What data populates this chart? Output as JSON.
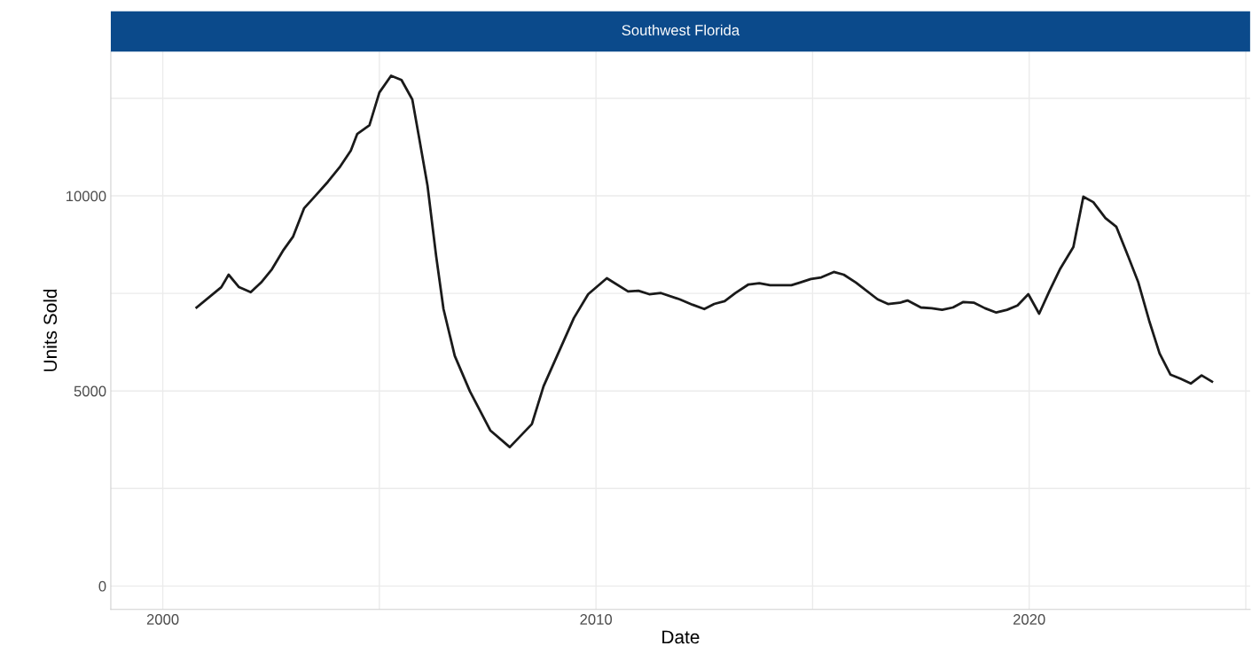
{
  "chart_data": {
    "type": "line",
    "title": "Southwest Florida",
    "xlabel": "Date",
    "ylabel": "Units Sold",
    "x": [
      2000.78,
      2001.35,
      2001.52,
      2001.76,
      2002.03,
      2002.27,
      2002.52,
      2002.79,
      2003.01,
      2003.26,
      2003.52,
      2003.81,
      2004.08,
      2004.34,
      2004.49,
      2004.77,
      2005.0,
      2005.27,
      2005.51,
      2005.76,
      2005.92,
      2006.11,
      2006.31,
      2006.48,
      2006.74,
      2007.09,
      2007.56,
      2008.01,
      2008.52,
      2008.79,
      2009.49,
      2009.82,
      2010.25,
      2010.74,
      2010.98,
      2011.23,
      2011.5,
      2011.93,
      2012.23,
      2012.5,
      2012.73,
      2012.97,
      2013.22,
      2013.52,
      2013.77,
      2014.02,
      2014.51,
      2014.71,
      2014.96,
      2015.2,
      2015.49,
      2015.72,
      2016.0,
      2016.5,
      2016.74,
      2017.01,
      2017.19,
      2017.5,
      2017.75,
      2017.99,
      2018.24,
      2018.48,
      2018.73,
      2018.98,
      2019.24,
      2019.49,
      2019.73,
      2019.98,
      2020.23,
      2020.47,
      2020.72,
      2021.02,
      2021.25,
      2021.48,
      2021.76,
      2022.01,
      2022.25,
      2022.52,
      2022.77,
      2023.01,
      2023.26,
      2023.5,
      2023.73,
      2023.98,
      2024.22
    ],
    "series": [
      {
        "color": "#1a1a1a",
        "values": [
          7140,
          7660,
          7980,
          7660,
          7530,
          7780,
          8120,
          8620,
          8960,
          9680,
          10000,
          10360,
          10730,
          11160,
          11590,
          11810,
          12650,
          13080,
          12970,
          12470,
          11470,
          10270,
          8460,
          7100,
          5900,
          4990,
          3990,
          3560,
          4150,
          5120,
          6870,
          7480,
          7890,
          7550,
          7570,
          7480,
          7510,
          7350,
          7210,
          7100,
          7230,
          7300,
          7510,
          7730,
          7760,
          7710,
          7710,
          7780,
          7870,
          7910,
          8050,
          7980,
          7780,
          7350,
          7230,
          7260,
          7320,
          7140,
          7120,
          7080,
          7140,
          7280,
          7260,
          7120,
          7010,
          7080,
          7190,
          7480,
          6980,
          7570,
          8140,
          8690,
          9980,
          9840,
          9430,
          9210,
          8550,
          7780,
          6800,
          5960,
          5420,
          5310,
          5190,
          5400,
          5240
        ]
      }
    ],
    "xlim": [
      1998.8,
      2025.1
    ],
    "xticks": [
      2000,
      {
        "value": 2005,
        "label": null
      },
      2010,
      {
        "value": 2015,
        "label": null
      },
      2020,
      {
        "value": 2025,
        "label": null
      }
    ],
    "ylim": [
      -600,
      13700
    ],
    "yticks": [
      0,
      {
        "value": 2500,
        "label": null
      },
      5000,
      {
        "value": 7500,
        "label": null
      },
      10000,
      {
        "value": 12500,
        "label": null
      }
    ],
    "grid": true,
    "line_style": "solid"
  }
}
